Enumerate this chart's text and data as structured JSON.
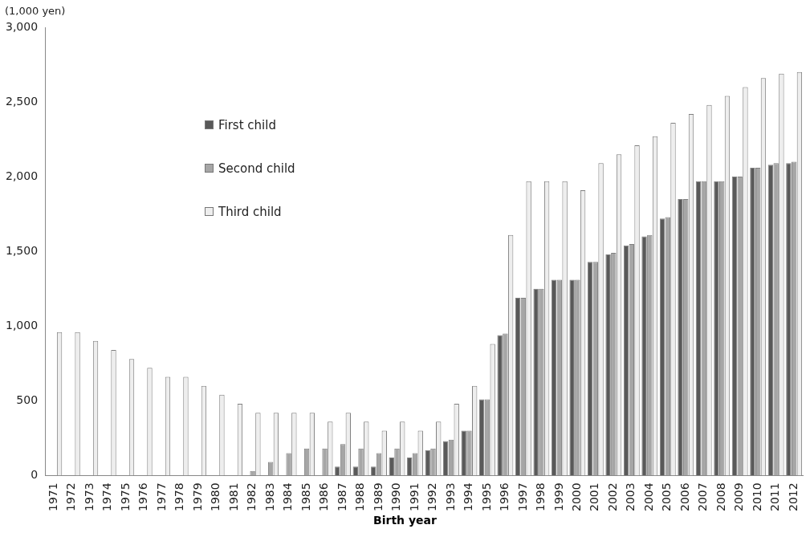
{
  "chart_data": {
    "type": "bar",
    "xlabel": "Birth year",
    "ylabel": "(1,000 yen)",
    "categories": [
      "1971",
      "1972",
      "1973",
      "1974",
      "1975",
      "1976",
      "1977",
      "1978",
      "1979",
      "1980",
      "1981",
      "1982",
      "1983",
      "1984",
      "1985",
      "1986",
      "1987",
      "1988",
      "1989",
      "1990",
      "1991",
      "1992",
      "1993",
      "1994",
      "1995",
      "1996",
      "1997",
      "1998",
      "1999",
      "2000",
      "2001",
      "2002",
      "2003",
      "2004",
      "2005",
      "2006",
      "2007",
      "2008",
      "2009",
      "2010",
      "2011",
      "2012"
    ],
    "series": [
      {
        "name": "First child",
        "color": "#595959",
        "values": [
          null,
          null,
          null,
          null,
          null,
          null,
          null,
          null,
          null,
          null,
          null,
          null,
          null,
          null,
          null,
          null,
          60,
          60,
          60,
          120,
          120,
          170,
          230,
          300,
          510,
          940,
          1190,
          1250,
          1310,
          1310,
          1430,
          1480,
          1540,
          1600,
          1720,
          1850,
          1970,
          1970,
          2000,
          2060,
          2080,
          2090
        ]
      },
      {
        "name": "Second child",
        "color": "#a6a6a6",
        "values": [
          null,
          null,
          null,
          null,
          null,
          null,
          null,
          null,
          null,
          null,
          null,
          30,
          90,
          150,
          180,
          180,
          210,
          180,
          150,
          180,
          150,
          180,
          240,
          300,
          510,
          950,
          1190,
          1250,
          1310,
          1310,
          1430,
          1490,
          1550,
          1610,
          1730,
          1850,
          1970,
          1970,
          2000,
          2060,
          2090,
          2100
        ]
      },
      {
        "name": "Third child",
        "color": "#eeeeee",
        "values": [
          960,
          960,
          900,
          840,
          780,
          720,
          660,
          660,
          600,
          540,
          480,
          420,
          420,
          420,
          420,
          360,
          420,
          360,
          300,
          360,
          300,
          360,
          480,
          600,
          880,
          1610,
          1970,
          1970,
          1970,
          1910,
          2090,
          2150,
          2210,
          2270,
          2360,
          2420,
          2480,
          2540,
          2600,
          2660,
          2690,
          2700
        ]
      }
    ],
    "ylim": [
      0,
      3000
    ],
    "yticks": [
      {
        "value": 0,
        "label": "0"
      },
      {
        "value": 500,
        "label": "500"
      },
      {
        "value": 1000,
        "label": "1,000"
      },
      {
        "value": 1500,
        "label": "1,500"
      },
      {
        "value": 2000,
        "label": "2,000"
      },
      {
        "value": 2500,
        "label": "2,500"
      },
      {
        "value": 3000,
        "label": "3,000"
      }
    ],
    "grid": false,
    "legend": "top left"
  }
}
